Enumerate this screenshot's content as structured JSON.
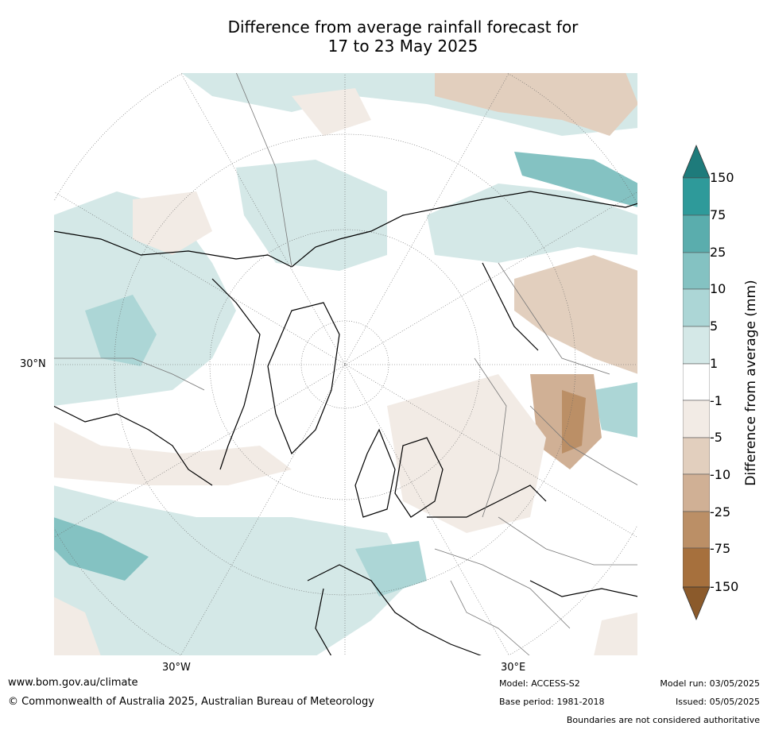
{
  "title_line1": "Difference from average rainfall forecast for",
  "title_line2": "17 to 23 May 2025",
  "map_labels": {
    "lat_left": "30°N",
    "lon_west": "30°W",
    "lon_east": "30°E"
  },
  "colorbar": {
    "title": "Difference from average (mm)",
    "ticks": [
      "150",
      "75",
      "25",
      "10",
      "5",
      "1",
      "-1",
      "-5",
      "-10",
      "-25",
      "-75",
      "-150"
    ],
    "colors": [
      "#1e7b7b",
      "#2e9a9a",
      "#5aadad",
      "#84c2c2",
      "#acd6d6",
      "#d4e8e7",
      "#ffffff",
      "#f2ebe5",
      "#e2cfbe",
      "#d0b095",
      "#bb8f66",
      "#a6703d",
      "#8b5a2b"
    ]
  },
  "footer": {
    "website": "www.bom.gov.au/climate",
    "copyright": "© Commonwealth of Australia 2025, Australian Bureau of Meteorology",
    "model": "Model: ACCESS-S2",
    "base_period": "Base period: 1981-2018",
    "model_run": "Model run: 03/05/2025",
    "issued": "Issued: 05/05/2025",
    "disclaimer": "Boundaries are not considered authoritative"
  }
}
